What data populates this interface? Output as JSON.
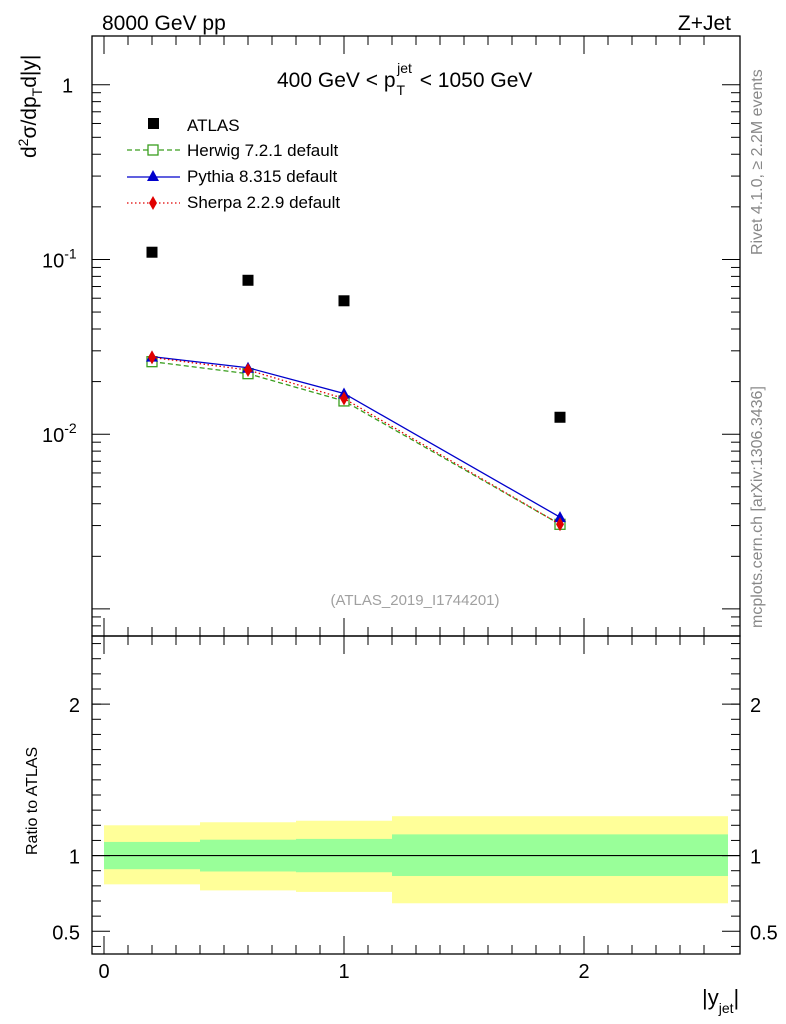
{
  "header": {
    "left": "8000 GeV pp",
    "right": "Z+Jet"
  },
  "side_text": {
    "rivet": "Rivet 4.1.0, ≥ 2.2M events",
    "mcplots": "mcplots.cern.ch [arXiv:1306.3436]"
  },
  "chart_data": [
    {
      "type": "scatter",
      "panel": "main",
      "title_parts": {
        "pre": "400 GeV < p",
        "sup": "jet",
        "sub": "T",
        "post": " < 1050 GeV"
      },
      "watermark": "(ATLAS_2019_I1744201)",
      "ylabel_parts": {
        "d": "d",
        "sup2": "2",
        "mid": "σ/dp",
        "subT": "T",
        "post": "d|y|"
      },
      "yscale": "log",
      "ylim": [
        0.0007,
        1.9
      ],
      "xlim": [
        -0.05,
        2.65
      ],
      "y_ticks": [
        {
          "base": "10",
          "exp": "-2",
          "value": 0.01
        },
        {
          "base": "10",
          "exp": "-1",
          "value": 0.1
        },
        {
          "base": "1",
          "exp": "",
          "value": 1
        }
      ],
      "legend": [
        "ATLAS",
        "Herwig 7.2.1 default",
        "Pythia 8.315 default",
        "Sherpa 2.2.9 default"
      ],
      "series": [
        {
          "name": "ATLAS",
          "color": "#000000",
          "marker": "square",
          "line": "none",
          "x": [
            0.2,
            0.6,
            1.0,
            1.9
          ],
          "y": [
            0.11,
            0.076,
            0.058,
            0.0125
          ]
        },
        {
          "name": "Herwig 7.2.1 default",
          "color": "#3a9e1e",
          "marker": "open-square",
          "line": "dashed",
          "x": [
            0.2,
            0.6,
            1.0,
            1.9
          ],
          "y": [
            0.026,
            0.0222,
            0.0155,
            0.00305
          ]
        },
        {
          "name": "Pythia 8.315 default",
          "color": "#0000cc",
          "marker": "triangle",
          "line": "solid",
          "x": [
            0.2,
            0.6,
            1.0,
            1.9
          ],
          "y": [
            0.0278,
            0.024,
            0.0171,
            0.00335
          ]
        },
        {
          "name": "Sherpa 2.2.9 default",
          "color": "#e00000",
          "marker": "diamond",
          "line": "dotted",
          "x": [
            0.2,
            0.6,
            1.0,
            1.9
          ],
          "y": [
            0.0275,
            0.0233,
            0.016,
            0.00305
          ]
        }
      ]
    },
    {
      "type": "area",
      "panel": "ratio",
      "ylabel": "Ratio to ATLAS",
      "xlabel_parts": {
        "pre": "|y",
        "sub": "jet",
        "post": "|"
      },
      "ylim": [
        0.35,
        2.45
      ],
      "xlim": [
        -0.05,
        2.65
      ],
      "y_tick_labels": [
        {
          "label": "0.5",
          "value": 0.5
        },
        {
          "label": "1",
          "value": 1
        },
        {
          "label": "2",
          "value": 2
        }
      ],
      "x_tick_labels": [
        {
          "label": "0",
          "value": 0
        },
        {
          "label": "1",
          "value": 1
        },
        {
          "label": "2",
          "value": 2
        }
      ],
      "reference_line": 1.0,
      "bins": [
        {
          "xlo": 0.0,
          "xhi": 0.4,
          "stat": [
            0.91,
            1.09
          ],
          "total": [
            0.81,
            1.2
          ]
        },
        {
          "xlo": 0.4,
          "xhi": 0.8,
          "stat": [
            0.895,
            1.105
          ],
          "total": [
            0.77,
            1.22
          ]
        },
        {
          "xlo": 0.8,
          "xhi": 1.2,
          "stat": [
            0.89,
            1.11
          ],
          "total": [
            0.76,
            1.23
          ]
        },
        {
          "xlo": 1.2,
          "xhi": 2.6,
          "stat": [
            0.865,
            1.14
          ],
          "total": [
            0.685,
            1.26
          ]
        }
      ],
      "colors": {
        "stat": "#99ff99",
        "total": "#ffff99",
        "reference": "#000000"
      }
    }
  ]
}
